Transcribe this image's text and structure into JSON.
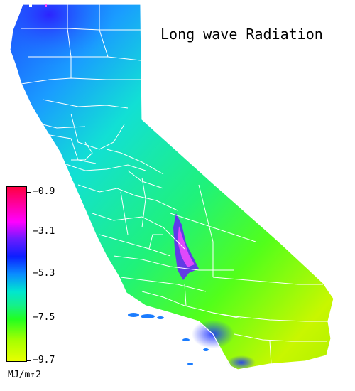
{
  "title": "Long wave Radiation",
  "legend": {
    "unit": "MJ/m↑2",
    "ticks": [
      "−0.9",
      "−3.1",
      "−5.3",
      "−7.5",
      "−9.7"
    ],
    "values": [
      -0.9,
      -3.1,
      -5.3,
      -7.5,
      -9.7
    ],
    "colors": [
      "#ff0040",
      "#ff00ff",
      "#6a1bff",
      "#0b1fff",
      "#0a8cff",
      "#00e6d0",
      "#22ff20",
      "#a6ff00",
      "#e8ff00"
    ]
  }
}
